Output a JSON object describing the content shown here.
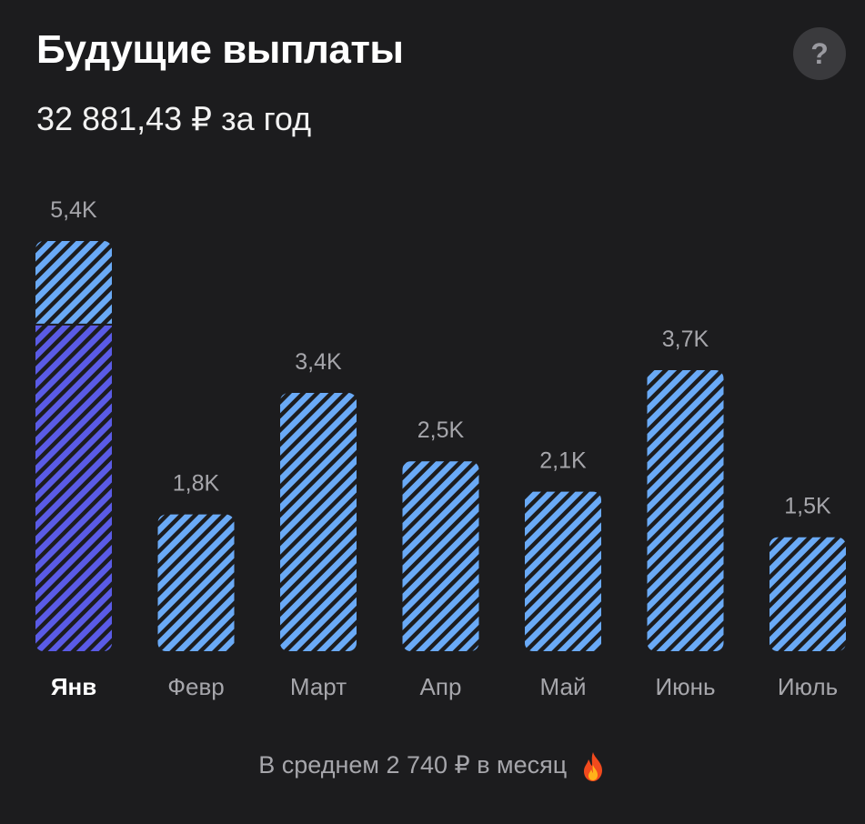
{
  "header": {
    "title": "Будущие выплаты",
    "subtitle": "32 881,43 ₽ за год",
    "help_label": "?"
  },
  "chart_data": {
    "type": "bar",
    "categories": [
      "Янв",
      "Февр",
      "Март",
      "Апр",
      "Май",
      "Июнь",
      "Июль"
    ],
    "values": [
      5400,
      1800,
      3400,
      2500,
      2100,
      3700,
      1500
    ],
    "value_labels": [
      "5,4K",
      "1,8K",
      "3,4K",
      "2,5K",
      "2,1K",
      "3,7K",
      "1,5K"
    ],
    "received_portion": [
      4300,
      0,
      0,
      0,
      0,
      0,
      0
    ],
    "selected_category": "Янв",
    "ylim": [
      0,
      5400
    ],
    "grid": false,
    "colors": {
      "stripe_light": "#6aaaf6",
      "stripe_received": "#5a5be6",
      "stripe_gap": "#1c1c1e",
      "label": "#a6a6ab",
      "selected_label": "#ffffff"
    }
  },
  "footer": {
    "text": "В среднем 2 740 ₽ в месяц",
    "icon": "flame-icon"
  }
}
